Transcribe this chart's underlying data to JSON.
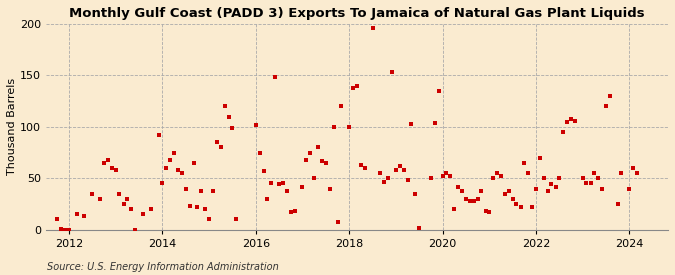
{
  "title": "Monthly Gulf Coast (PADD 3) Exports To Jamaica of Natural Gas Plant Liquids",
  "ylabel": "Thousand Barrels",
  "source": "Source: U.S. Energy Information Administration",
  "background_color": "#faebd0",
  "dot_color": "#cc0000",
  "ylim": [
    0,
    200
  ],
  "yticks": [
    0,
    50,
    100,
    150,
    200
  ],
  "xlim_start": 2011.5,
  "xlim_end": 2024.83,
  "xticks": [
    2012,
    2014,
    2016,
    2018,
    2020,
    2022,
    2024
  ],
  "data": [
    [
      2011.75,
      10
    ],
    [
      2011.83,
      1
    ],
    [
      2011.92,
      0
    ],
    [
      2012.0,
      0
    ],
    [
      2012.17,
      15
    ],
    [
      2012.33,
      13
    ],
    [
      2012.5,
      35
    ],
    [
      2012.67,
      30
    ],
    [
      2012.75,
      65
    ],
    [
      2012.83,
      68
    ],
    [
      2012.92,
      60
    ],
    [
      2013.0,
      58
    ],
    [
      2013.08,
      35
    ],
    [
      2013.17,
      25
    ],
    [
      2013.25,
      30
    ],
    [
      2013.33,
      20
    ],
    [
      2013.42,
      0
    ],
    [
      2013.58,
      15
    ],
    [
      2013.75,
      20
    ],
    [
      2013.92,
      92
    ],
    [
      2014.0,
      45
    ],
    [
      2014.08,
      60
    ],
    [
      2014.17,
      68
    ],
    [
      2014.25,
      75
    ],
    [
      2014.33,
      58
    ],
    [
      2014.42,
      55
    ],
    [
      2014.5,
      40
    ],
    [
      2014.58,
      23
    ],
    [
      2014.67,
      65
    ],
    [
      2014.75,
      22
    ],
    [
      2014.83,
      38
    ],
    [
      2014.92,
      20
    ],
    [
      2015.0,
      10
    ],
    [
      2015.08,
      38
    ],
    [
      2015.17,
      85
    ],
    [
      2015.25,
      80
    ],
    [
      2015.33,
      120
    ],
    [
      2015.42,
      110
    ],
    [
      2015.5,
      99
    ],
    [
      2015.58,
      10
    ],
    [
      2016.0,
      102
    ],
    [
      2016.08,
      75
    ],
    [
      2016.17,
      57
    ],
    [
      2016.25,
      30
    ],
    [
      2016.33,
      45
    ],
    [
      2016.42,
      148
    ],
    [
      2016.5,
      44
    ],
    [
      2016.58,
      45
    ],
    [
      2016.67,
      38
    ],
    [
      2016.75,
      17
    ],
    [
      2016.83,
      18
    ],
    [
      2017.0,
      42
    ],
    [
      2017.08,
      68
    ],
    [
      2017.17,
      75
    ],
    [
      2017.25,
      50
    ],
    [
      2017.33,
      80
    ],
    [
      2017.42,
      67
    ],
    [
      2017.5,
      65
    ],
    [
      2017.58,
      40
    ],
    [
      2017.67,
      100
    ],
    [
      2017.75,
      8
    ],
    [
      2017.83,
      120
    ],
    [
      2018.0,
      100
    ],
    [
      2018.08,
      138
    ],
    [
      2018.17,
      140
    ],
    [
      2018.25,
      63
    ],
    [
      2018.33,
      60
    ],
    [
      2018.5,
      196
    ],
    [
      2018.67,
      55
    ],
    [
      2018.75,
      46
    ],
    [
      2018.83,
      50
    ],
    [
      2018.92,
      153
    ],
    [
      2019.0,
      58
    ],
    [
      2019.08,
      62
    ],
    [
      2019.17,
      58
    ],
    [
      2019.25,
      48
    ],
    [
      2019.33,
      103
    ],
    [
      2019.42,
      35
    ],
    [
      2019.5,
      2
    ],
    [
      2019.75,
      50
    ],
    [
      2019.83,
      104
    ],
    [
      2019.92,
      135
    ],
    [
      2020.0,
      52
    ],
    [
      2020.08,
      55
    ],
    [
      2020.17,
      52
    ],
    [
      2020.25,
      20
    ],
    [
      2020.33,
      42
    ],
    [
      2020.42,
      38
    ],
    [
      2020.5,
      30
    ],
    [
      2020.58,
      28
    ],
    [
      2020.67,
      28
    ],
    [
      2020.75,
      30
    ],
    [
      2020.83,
      38
    ],
    [
      2020.92,
      18
    ],
    [
      2021.0,
      17
    ],
    [
      2021.08,
      50
    ],
    [
      2021.17,
      55
    ],
    [
      2021.25,
      52
    ],
    [
      2021.33,
      35
    ],
    [
      2021.42,
      38
    ],
    [
      2021.5,
      30
    ],
    [
      2021.58,
      25
    ],
    [
      2021.67,
      22
    ],
    [
      2021.75,
      65
    ],
    [
      2021.83,
      55
    ],
    [
      2021.92,
      22
    ],
    [
      2022.0,
      40
    ],
    [
      2022.08,
      70
    ],
    [
      2022.17,
      50
    ],
    [
      2022.25,
      38
    ],
    [
      2022.33,
      44
    ],
    [
      2022.42,
      42
    ],
    [
      2022.5,
      50
    ],
    [
      2022.58,
      95
    ],
    [
      2022.67,
      105
    ],
    [
      2022.75,
      108
    ],
    [
      2022.83,
      106
    ],
    [
      2023.0,
      50
    ],
    [
      2023.08,
      45
    ],
    [
      2023.17,
      45
    ],
    [
      2023.25,
      55
    ],
    [
      2023.33,
      50
    ],
    [
      2023.42,
      40
    ],
    [
      2023.5,
      120
    ],
    [
      2023.58,
      130
    ],
    [
      2023.75,
      25
    ],
    [
      2023.83,
      55
    ],
    [
      2024.0,
      40
    ],
    [
      2024.08,
      60
    ],
    [
      2024.17,
      55
    ]
  ],
  "title_fontsize": 9.5,
  "tick_fontsize": 8,
  "ylabel_fontsize": 8,
  "source_fontsize": 7
}
